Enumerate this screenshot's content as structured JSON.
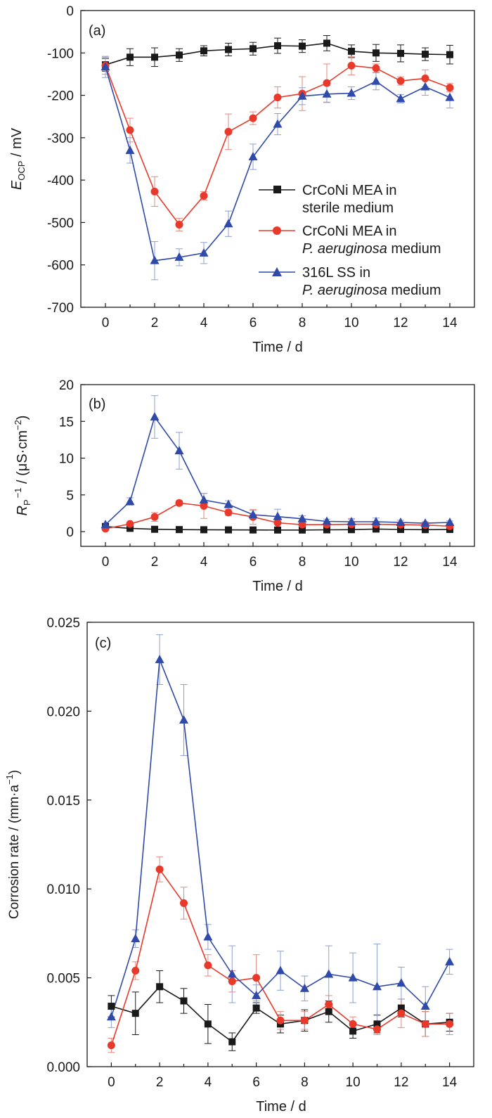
{
  "x_ticks": [
    "0",
    "2",
    "4",
    "6",
    "8",
    "10",
    "12",
    "14"
  ],
  "colors": {
    "black": "#1a1a1a",
    "red": "#e8392a",
    "blue": "#2f4aa8",
    "red_err": "#e58a7c",
    "blue_err": "#8d9fd2"
  },
  "chart_data": [
    {
      "type": "line",
      "panel_label": "(a)",
      "xlabel": "Time / d",
      "ylabel_main": "E",
      "ylabel_sub": "OCP",
      "ylabel_rest": " / mV",
      "xlim": [
        -1,
        15
      ],
      "ylim": [
        -700,
        0
      ],
      "y_ticks": [
        "0",
        "-100",
        "-200",
        "-300",
        "-400",
        "-500",
        "-600",
        "-700"
      ],
      "legend_placement": "lower-right",
      "legend": [
        {
          "line1": "CrCoNi MEA in",
          "line2_italic": "",
          "line2_rest": "sterile medium",
          "color_key": "black",
          "marker": "square"
        },
        {
          "line1": "CrCoNi MEA in",
          "line2_italic": "P. aeruginosa",
          "line2_rest": " medium",
          "color_key": "red",
          "marker": "circle"
        },
        {
          "line1": "316L SS in",
          "line2_italic": "P. aeruginosa",
          "line2_rest": " medium",
          "color_key": "blue",
          "marker": "triangle"
        }
      ],
      "x": [
        0,
        1,
        2,
        3,
        4,
        5,
        6,
        7,
        8,
        9,
        10,
        11,
        12,
        13,
        14
      ],
      "series": [
        {
          "name": "CrCoNi MEA in sterile medium",
          "color_key": "black",
          "marker": "square",
          "values": [
            -128,
            -110,
            -110,
            -105,
            -95,
            -92,
            -90,
            -83,
            -84,
            -77,
            -96,
            -100,
            -101,
            -103,
            -104
          ],
          "errors": [
            15,
            20,
            22,
            15,
            12,
            15,
            15,
            18,
            15,
            18,
            15,
            20,
            20,
            15,
            22
          ]
        },
        {
          "name": "CrCoNi MEA in P. aeruginosa medium",
          "color_key": "red",
          "marker": "circle",
          "values": [
            -130,
            -282,
            -427,
            -505,
            -437,
            -286,
            -254,
            -205,
            -196,
            -171,
            -130,
            -136,
            -166,
            -160,
            -182
          ],
          "errors": [
            20,
            28,
            35,
            15,
            10,
            42,
            15,
            25,
            40,
            45,
            22,
            10,
            10,
            20,
            10
          ]
        },
        {
          "name": "316L SS in P. aeruginosa medium",
          "color_key": "blue",
          "marker": "triangle",
          "values": [
            -133,
            -330,
            -590,
            -582,
            -572,
            -503,
            -345,
            -268,
            -202,
            -197,
            -195,
            -167,
            -208,
            -180,
            -205
          ],
          "errors": [
            25,
            30,
            45,
            20,
            25,
            30,
            30,
            25,
            20,
            20,
            15,
            20,
            10,
            20,
            25
          ]
        }
      ]
    },
    {
      "type": "line",
      "panel_label": "(b)",
      "xlabel": "Time / d",
      "ylabel_main": "R",
      "ylabel_sub": "P",
      "ylabel_sup": "−1",
      "ylabel_rest": " / (μS·cm",
      "ylabel_sup2": "−2",
      "ylabel_end": ")",
      "xlim": [
        -1,
        15
      ],
      "ylim": [
        -2,
        20
      ],
      "y_ticks": [
        "0",
        "5",
        "10",
        "15",
        "20"
      ],
      "x": [
        0,
        1,
        2,
        3,
        4,
        5,
        6,
        7,
        8,
        9,
        10,
        11,
        12,
        13,
        14
      ],
      "series": [
        {
          "name": "CrCoNi MEA in sterile medium",
          "color_key": "black",
          "marker": "square",
          "values": [
            0.7,
            0.45,
            0.32,
            0.28,
            0.26,
            0.24,
            0.23,
            0.22,
            0.22,
            0.25,
            0.27,
            0.35,
            0.3,
            0.27,
            0.3
          ],
          "errors": [
            0.15,
            0.1,
            0.05,
            0.05,
            0.05,
            0.05,
            0.05,
            0.05,
            0.05,
            0.05,
            0.05,
            0.05,
            0.05,
            0.05,
            0.05
          ]
        },
        {
          "name": "CrCoNi MEA in P. aeruginosa medium",
          "color_key": "red",
          "marker": "circle",
          "values": [
            0.4,
            1.05,
            2.0,
            3.9,
            3.5,
            2.6,
            2.0,
            1.2,
            0.95,
            0.95,
            1.0,
            1.0,
            0.95,
            0.9,
            0.75
          ],
          "errors": [
            0.1,
            0.15,
            0.6,
            0.3,
            1.7,
            0.4,
            1.0,
            0.2,
            0.2,
            0.3,
            0.8,
            0.4,
            0.3,
            0.3,
            0.2
          ]
        },
        {
          "name": "316L SS in P. aeruginosa medium",
          "color_key": "blue",
          "marker": "triangle",
          "values": [
            0.95,
            4.1,
            15.6,
            11.0,
            4.3,
            3.7,
            2.3,
            2.05,
            1.75,
            1.4,
            1.35,
            1.35,
            1.25,
            1.15,
            1.25
          ],
          "errors": [
            0.1,
            0.5,
            2.9,
            2.5,
            0.9,
            0.5,
            0.6,
            1.0,
            0.4,
            0.3,
            0.3,
            0.5,
            0.3,
            0.2,
            0.2
          ]
        }
      ]
    },
    {
      "type": "line",
      "panel_label": "(c)",
      "xlabel": "Time / d",
      "ylabel_main": "Corrosion rate / (mm·a",
      "ylabel_sup": "−1",
      "ylabel_end": ")",
      "xlim": [
        -1,
        15
      ],
      "ylim": [
        0,
        0.025
      ],
      "y_ticks": [
        "0.000",
        "0.005",
        "0.010",
        "0.015",
        "0.020",
        "0.025"
      ],
      "x": [
        0,
        1,
        2,
        3,
        4,
        5,
        6,
        7,
        8,
        9,
        10,
        11,
        12,
        13,
        14
      ],
      "series": [
        {
          "name": "CrCoNi MEA in sterile medium",
          "color_key": "black",
          "marker": "square",
          "values": [
            0.0034,
            0.003,
            0.0045,
            0.0037,
            0.0024,
            0.0014,
            0.0033,
            0.0024,
            0.0026,
            0.0031,
            0.002,
            0.0024,
            0.0033,
            0.0024,
            0.0025
          ],
          "errors": [
            0.0006,
            0.0012,
            0.0009,
            0.0007,
            0.0011,
            0.0005,
            0.0003,
            0.0005,
            0.0006,
            0.0006,
            0.0004,
            0.0005,
            0.0005,
            0.0007,
            0.0005
          ]
        },
        {
          "name": "CrCoNi MEA in P. aeruginosa medium",
          "color_key": "red",
          "marker": "circle",
          "values": [
            0.0012,
            0.0054,
            0.0111,
            0.0092,
            0.0057,
            0.0048,
            0.005,
            0.0026,
            0.0026,
            0.0035,
            0.0024,
            0.0021,
            0.003,
            0.0024,
            0.0024
          ],
          "errors": [
            0.0004,
            0.0005,
            0.0007,
            0.0009,
            0.0006,
            0.0006,
            0.0013,
            0.0005,
            0.0005,
            0.0005,
            0.0004,
            0.0003,
            0.0008,
            0.0007,
            0.0006
          ]
        },
        {
          "name": "316L SS in P. aeruginosa medium",
          "color_key": "blue",
          "marker": "triangle",
          "values": [
            0.0028,
            0.0072,
            0.0229,
            0.0195,
            0.0073,
            0.0052,
            0.004,
            0.0054,
            0.0044,
            0.0052,
            0.005,
            0.0045,
            0.0047,
            0.0034,
            0.0059
          ],
          "errors": [
            0.0006,
            0.0005,
            0.0014,
            0.002,
            0.0007,
            0.0016,
            0.0006,
            0.0011,
            0.0007,
            0.0016,
            0.0014,
            0.0024,
            0.0009,
            0.0011,
            0.0007
          ]
        }
      ]
    }
  ]
}
